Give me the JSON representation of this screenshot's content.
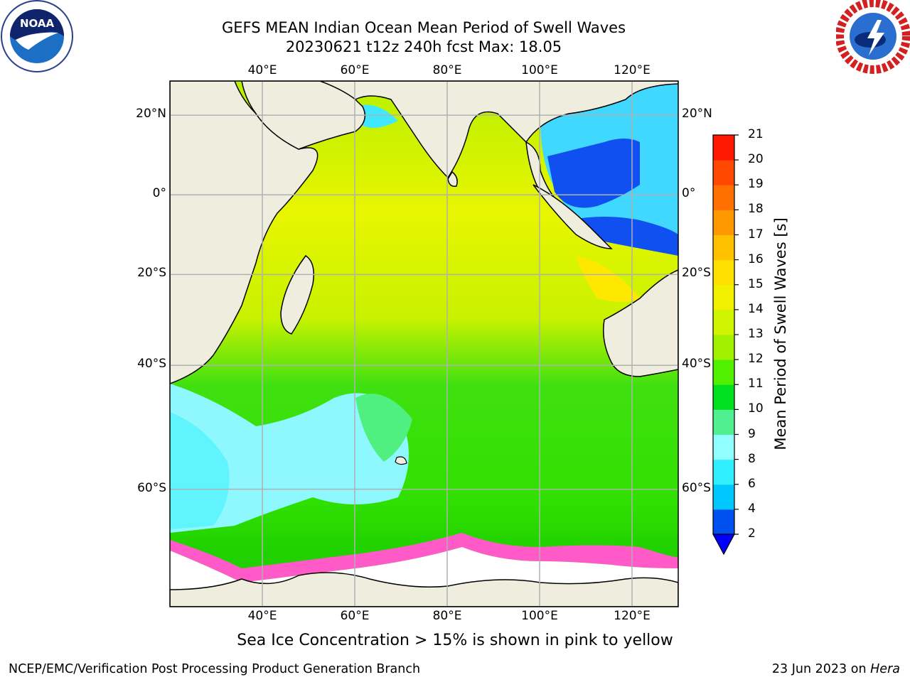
{
  "header": {
    "title_line1": "GEFS MEAN Indian Ocean Mean Period of Swell Waves",
    "title_line2": "20230621 t12z 240h fcst   Max: 18.05"
  },
  "logos": {
    "left": {
      "icon": "noaa-logo-icon",
      "text": "NOAA"
    },
    "right": {
      "icon": "nws-logo-icon"
    }
  },
  "map": {
    "lon_labels": [
      "40°E",
      "60°E",
      "80°E",
      "100°E",
      "120°E"
    ],
    "lat_labels": [
      "20°N",
      "0°",
      "20°S",
      "40°S",
      "60°S"
    ],
    "lon_range": [
      20,
      130
    ],
    "lat_range": [
      -72,
      28
    ],
    "colors": {
      "land": "#efeede",
      "grid": "#b0b0b0"
    }
  },
  "colorbar": {
    "title": "Mean Period of Swell Waves [s]",
    "ticks": [
      "2",
      "4",
      "6",
      "8",
      "9",
      "10",
      "11",
      "12",
      "13",
      "14",
      "15",
      "16",
      "17",
      "18",
      "19",
      "20",
      "21"
    ],
    "colors": [
      "#0050f0",
      "#00c8ff",
      "#30f0ff",
      "#90ffff",
      "#50f090",
      "#00e020",
      "#50f000",
      "#a0f000",
      "#d0f500",
      "#f0f000",
      "#ffe000",
      "#ffc000",
      "#ff9800",
      "#ff7000",
      "#ff4800",
      "#ff1800"
    ],
    "extend_color": "#0000ff"
  },
  "footer": {
    "note": "Sea Ice Concentration > 15% is shown in pink to yellow",
    "credit": "NCEP/EMC/Verification Post Processing Product Generation Branch",
    "date": "23 Jun 2023 on",
    "machine": "Hera"
  }
}
